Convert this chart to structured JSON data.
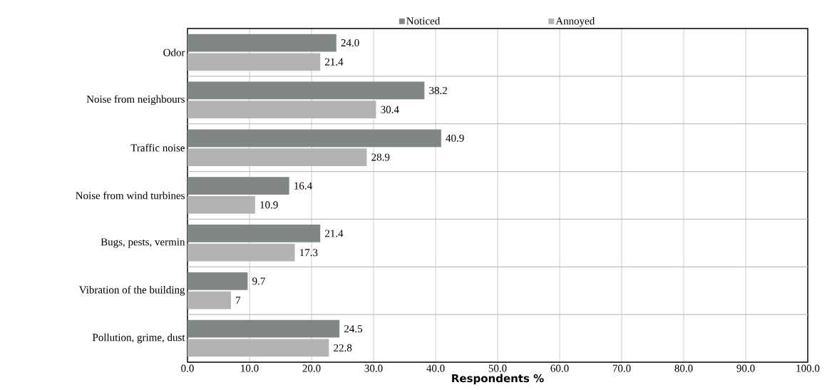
{
  "chart_data": {
    "type": "bar",
    "orientation": "horizontal",
    "xlabel": "Respondents %",
    "categories": [
      "Odor",
      "Noise from neighbours",
      "Traffic noise",
      "Noise from wind turbines",
      "Bugs, pests, vermin",
      "Vibration of the building",
      "Pollution, grime, dust"
    ],
    "series": [
      {
        "name": "Noticed",
        "color": "#808784",
        "values": [
          24.0,
          38.2,
          40.9,
          16.4,
          21.4,
          9.7,
          24.5
        ],
        "value_labels": [
          "24.0",
          "38.2",
          "40.9",
          "16.4",
          "21.4",
          "9.7",
          "24.5"
        ]
      },
      {
        "name": "Annoyed",
        "color": "#b3b3b3",
        "values": [
          21.4,
          30.4,
          28.9,
          10.9,
          17.3,
          7,
          22.8
        ],
        "value_labels": [
          "21.4",
          "30.4",
          "28.9",
          "10.9",
          "17.3",
          "7",
          "22.8"
        ]
      }
    ],
    "xlim": [
      0,
      100
    ],
    "xticks": [
      {
        "value": 0,
        "label": "0.0"
      },
      {
        "value": 10,
        "label": "10.0"
      },
      {
        "value": 20,
        "label": "20.0"
      },
      {
        "value": 30,
        "label": "30.0"
      },
      {
        "value": 40,
        "label": "40.0"
      },
      {
        "value": 50,
        "label": "50.0"
      },
      {
        "value": 60,
        "label": "60.0"
      },
      {
        "value": 70,
        "label": "70.0"
      },
      {
        "value": 80,
        "label": "80.0"
      },
      {
        "value": 90,
        "label": "90.0"
      },
      {
        "value": 100,
        "label": "100.0"
      }
    ],
    "grid": true,
    "legend": "top"
  }
}
